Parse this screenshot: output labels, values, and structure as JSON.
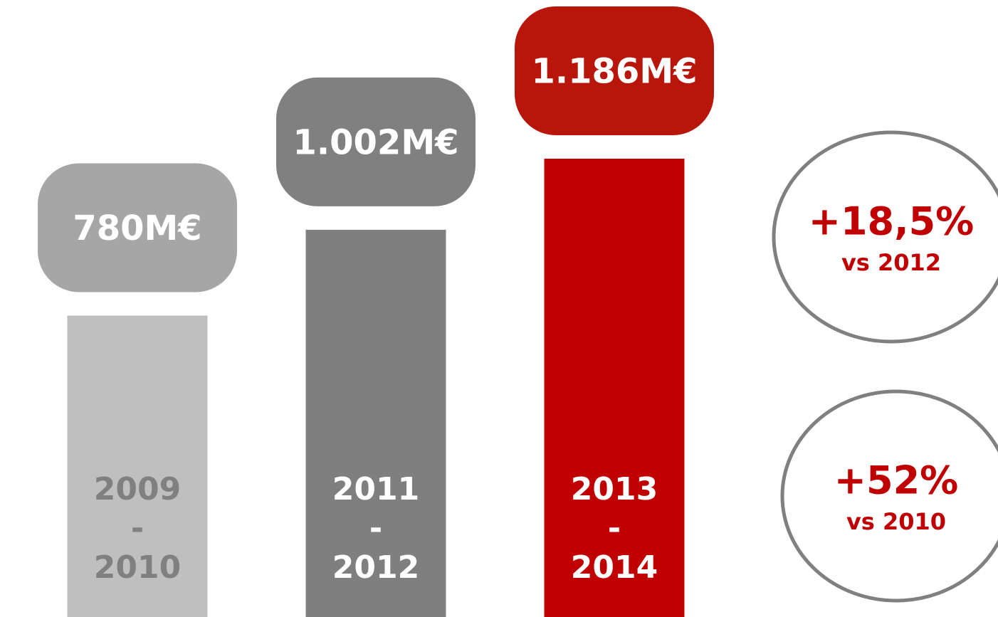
{
  "chart_data": {
    "type": "bar",
    "categories": [
      "2009 - 2010",
      "2011 - 2012",
      "2013 - 2014"
    ],
    "values": [
      780,
      1002,
      1186
    ],
    "value_labels": [
      "780M€",
      "1.002M€",
      "1.186M€"
    ],
    "colors": [
      "#bfbfbf",
      "#7f7f7f",
      "#c00000"
    ],
    "label_colors": [
      "#a6a6a6",
      "#808080",
      "#b8160b"
    ],
    "category_text_colors": [
      "#808080",
      "#ffffff",
      "#ffffff"
    ],
    "annotations": [
      {
        "text": "+18,5%",
        "subtext": "vs 2012"
      },
      {
        "text": "+52%",
        "subtext": "vs 2010"
      }
    ]
  }
}
